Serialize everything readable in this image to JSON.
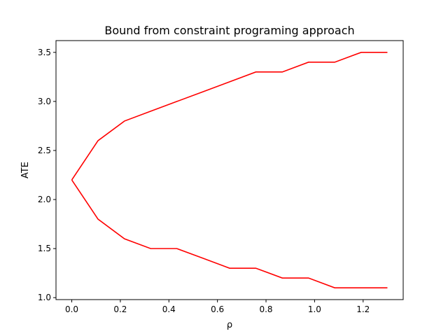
{
  "chart_data": {
    "type": "line",
    "title": "Bound from constraint programing approach",
    "xlabel": "ρ",
    "ylabel": "ATE",
    "xlim": [
      -0.065,
      1.365
    ],
    "ylim": [
      0.98,
      3.62
    ],
    "xticks": [
      0.0,
      0.2,
      0.4,
      0.6,
      0.8,
      1.0,
      1.2
    ],
    "xtick_labels": [
      "0.0",
      "0.2",
      "0.4",
      "0.6",
      "0.8",
      "1.0",
      "1.2"
    ],
    "yticks": [
      1.0,
      1.5,
      2.0,
      2.5,
      3.0,
      3.5
    ],
    "ytick_labels": [
      "1.0",
      "1.5",
      "2.0",
      "2.5",
      "3.0",
      "3.5"
    ],
    "grid": false,
    "series_color": "#ff0000",
    "series": [
      {
        "x": [
          0.0,
          0.108,
          0.217,
          0.325,
          0.433,
          0.542,
          0.65,
          0.758,
          0.867,
          0.975,
          1.083,
          1.192,
          1.3
        ],
        "values": [
          2.2,
          2.6,
          2.8,
          2.9,
          3.0,
          3.1,
          3.2,
          3.3,
          3.3,
          3.4,
          3.4,
          3.5,
          3.5
        ]
      },
      {
        "x": [
          0.0,
          0.108,
          0.217,
          0.325,
          0.433,
          0.542,
          0.65,
          0.758,
          0.867,
          0.975,
          1.083,
          1.192,
          1.3
        ],
        "values": [
          2.2,
          1.8,
          1.6,
          1.5,
          1.5,
          1.4,
          1.3,
          1.3,
          1.2,
          1.2,
          1.1,
          1.1,
          1.1
        ]
      }
    ]
  }
}
